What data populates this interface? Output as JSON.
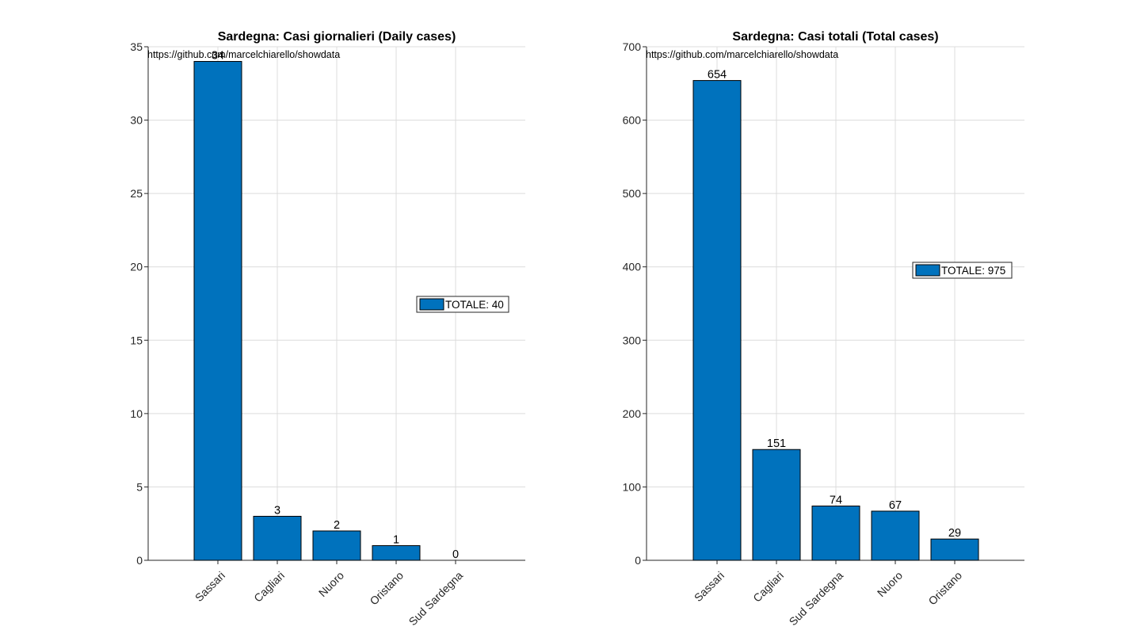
{
  "chart_data": [
    {
      "type": "bar",
      "title": "Sardegna: Casi giornalieri (Daily cases)",
      "source": "https://github.com/marcelchiarello/showdata",
      "categories": [
        "Sassari",
        "Cagliari",
        "Nuoro",
        "Oristano",
        "Sud Sardegna"
      ],
      "values": [
        34,
        3,
        2,
        1,
        0
      ],
      "data_labels": [
        "34",
        "3",
        "2",
        "1",
        "0"
      ],
      "ylim": [
        0,
        35
      ],
      "yticks": [
        0,
        5,
        10,
        15,
        20,
        25,
        30,
        35
      ],
      "grid": true,
      "legend": {
        "label": "TOTALE: 40",
        "placement": "right"
      },
      "bar_color": "#0072BD"
    },
    {
      "type": "bar",
      "title": "Sardegna: Casi totali (Total cases)",
      "source": "https://github.com/marcelchiarello/showdata",
      "categories": [
        "Sassari",
        "Cagliari",
        "Sud Sardegna",
        "Nuoro",
        "Oristano"
      ],
      "values": [
        654,
        151,
        74,
        67,
        29
      ],
      "data_labels": [
        "654",
        "151",
        "74",
        "67",
        "29"
      ],
      "ylim": [
        0,
        700
      ],
      "yticks": [
        0,
        100,
        200,
        300,
        400,
        500,
        600,
        700
      ],
      "grid": true,
      "legend": {
        "label": "TOTALE: 975",
        "placement": "right"
      },
      "bar_color": "#0072BD"
    }
  ]
}
